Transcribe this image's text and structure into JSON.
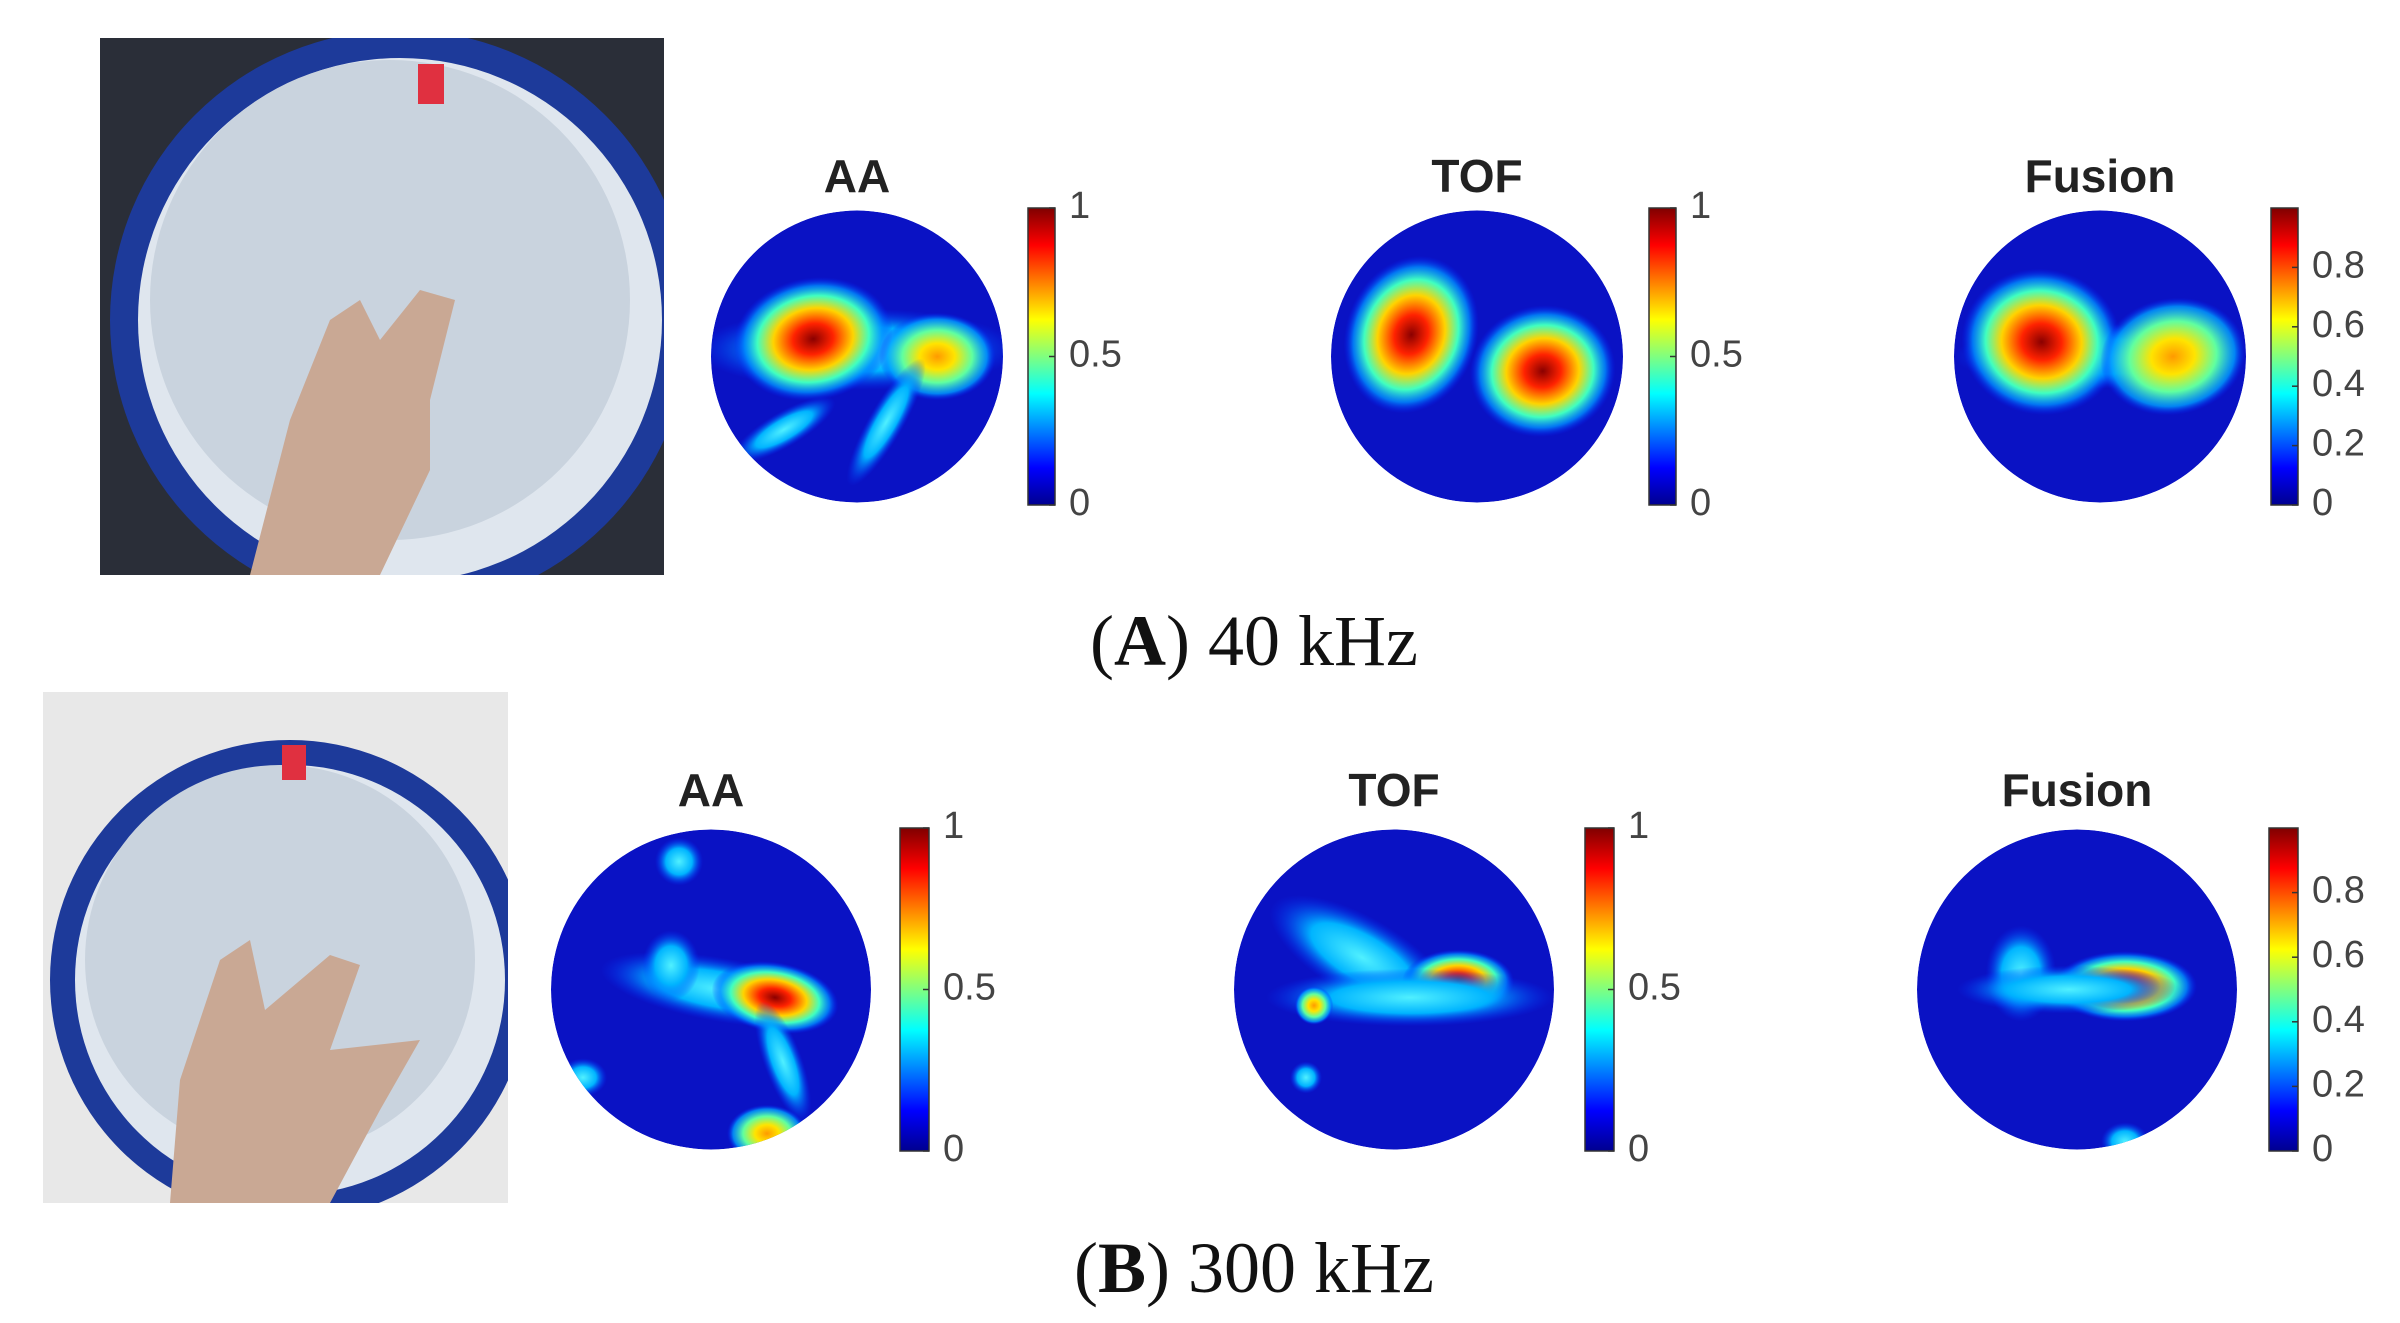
{
  "rows": [
    {
      "caption": {
        "open": "(",
        "label": "A",
        "rest": ") 40 kHz"
      },
      "maps": [
        {
          "title": "AA",
          "ticks": [
            0,
            0.5,
            1
          ]
        },
        {
          "title": "TOF",
          "ticks": [
            0,
            0.5,
            1
          ]
        },
        {
          "title": "Fusion",
          "ticks": [
            0,
            0.2,
            0.4,
            0.6,
            0.8
          ]
        }
      ]
    },
    {
      "caption": {
        "open": "(",
        "label": "B",
        "rest": ") 300 kHz"
      },
      "maps": [
        {
          "title": "AA",
          "ticks": [
            0,
            0.5,
            1
          ]
        },
        {
          "title": "TOF",
          "ticks": [
            0,
            0.5,
            1
          ]
        },
        {
          "title": "Fusion",
          "ticks": [
            0,
            0.2,
            0.4,
            0.6,
            0.8
          ]
        }
      ]
    }
  ]
}
